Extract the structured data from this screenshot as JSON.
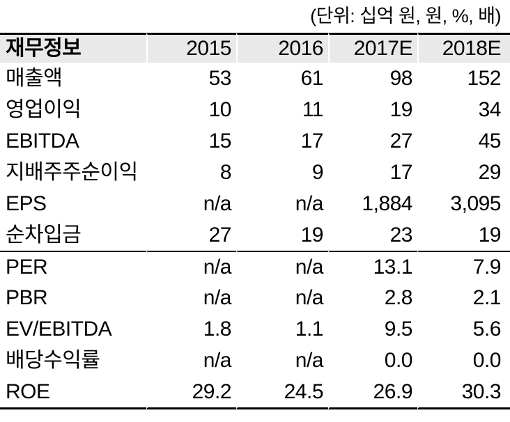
{
  "unit_label": "(단위: 십억 원, 원, %, 배)",
  "colors": {
    "header_background": "#e9e9e9",
    "rule": "#000000",
    "text": "#000000"
  },
  "table": {
    "header": [
      "재무정보",
      "2015",
      "2016",
      "2017E",
      "2018E"
    ],
    "sections": [
      {
        "rows": [
          {
            "label": "매출액",
            "values": [
              "53",
              "61",
              "98",
              "152"
            ]
          },
          {
            "label": "영업이익",
            "values": [
              "10",
              "11",
              "19",
              "34"
            ]
          },
          {
            "label": "EBITDA",
            "values": [
              "15",
              "17",
              "27",
              "45"
            ]
          },
          {
            "label": "지배주주순이익",
            "values": [
              "8",
              "9",
              "17",
              "29"
            ]
          },
          {
            "label": "EPS",
            "values": [
              "n/a",
              "n/a",
              "1,884",
              "3,095"
            ]
          },
          {
            "label": "순차입금",
            "values": [
              "27",
              "19",
              "23",
              "19"
            ]
          }
        ]
      },
      {
        "rows": [
          {
            "label": "PER",
            "values": [
              "n/a",
              "n/a",
              "13.1",
              "7.9"
            ]
          },
          {
            "label": "PBR",
            "values": [
              "n/a",
              "n/a",
              "2.8",
              "2.1"
            ]
          },
          {
            "label": "EV/EBITDA",
            "values": [
              "1.8",
              "1.1",
              "9.5",
              "5.6"
            ]
          },
          {
            "label": "배당수익률",
            "values": [
              "n/a",
              "n/a",
              "0.0",
              "0.0"
            ]
          },
          {
            "label": "ROE",
            "values": [
              "29.2",
              "24.5",
              "26.9",
              "30.3"
            ]
          }
        ]
      }
    ]
  }
}
